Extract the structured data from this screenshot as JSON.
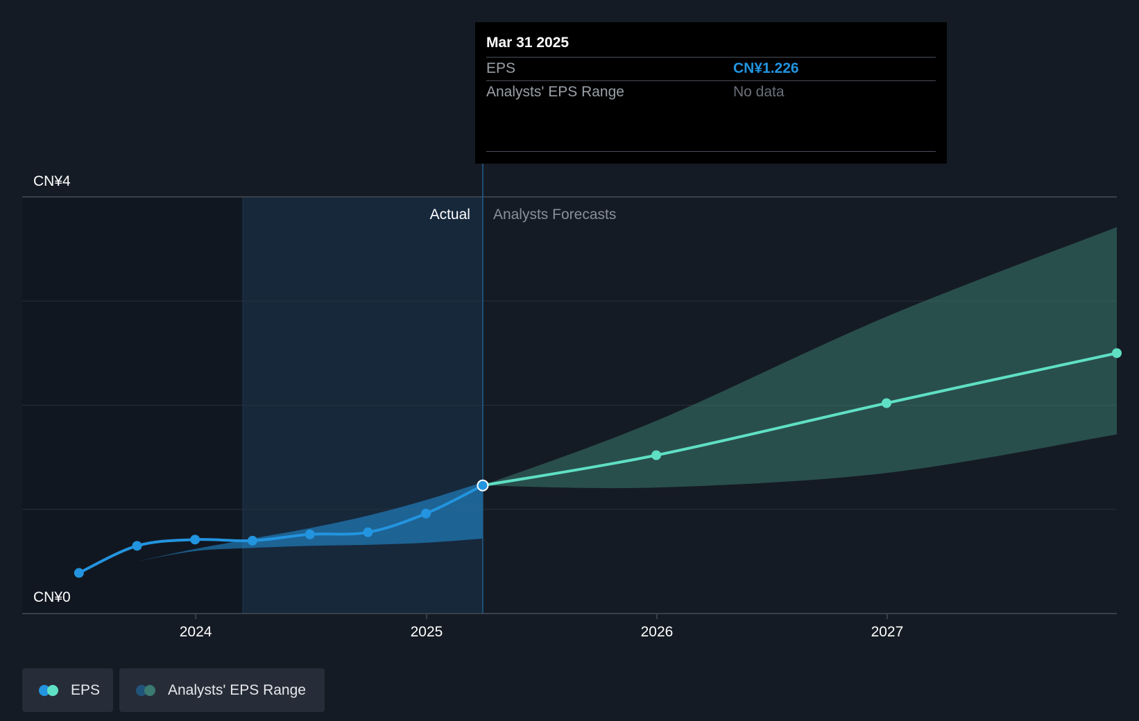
{
  "chart_data": {
    "type": "line",
    "y_ticks": {
      "top": "CN¥4",
      "bottom": "CN¥0"
    },
    "ylim": [
      0,
      4
    ],
    "x_ticks": [
      "2024",
      "2025",
      "2026",
      "2027"
    ],
    "xlim": [
      "2023-04-01",
      "2027-12-31"
    ],
    "regions": {
      "actual_label": "Actual",
      "forecast_label": "Analysts Forecasts",
      "divider_date": "2025-03-31"
    },
    "series": [
      {
        "name": "EPS",
        "color": "#2394df",
        "points": [
          {
            "x": "2023-06-30",
            "y": 0.39
          },
          {
            "x": "2023-09-30",
            "y": 0.65
          },
          {
            "x": "2023-12-31",
            "y": 0.71
          },
          {
            "x": "2024-03-31",
            "y": 0.7
          },
          {
            "x": "2024-06-30",
            "y": 0.76
          },
          {
            "x": "2024-09-30",
            "y": 0.78
          },
          {
            "x": "2024-12-31",
            "y": 0.96
          },
          {
            "x": "2025-03-31",
            "y": 1.23
          }
        ]
      },
      {
        "name": "EPS",
        "color": "#5fe0c5",
        "points": [
          {
            "x": "2025-03-31",
            "y": 1.23
          },
          {
            "x": "2025-12-31",
            "y": 1.52
          },
          {
            "x": "2026-12-31",
            "y": 2.02
          },
          {
            "x": "2027-12-31",
            "y": 2.5
          }
        ]
      }
    ],
    "actual_range": {
      "color": "#2394df",
      "points": [
        {
          "x": "2023-09-30",
          "low": 0.5,
          "high": 0.5
        },
        {
          "x": "2023-12-31",
          "low": 0.6,
          "high": 0.62
        },
        {
          "x": "2024-03-31",
          "low": 0.63,
          "high": 0.72
        },
        {
          "x": "2024-06-30",
          "low": 0.65,
          "high": 0.82
        },
        {
          "x": "2024-09-30",
          "low": 0.66,
          "high": 0.94
        },
        {
          "x": "2024-12-31",
          "low": 0.68,
          "high": 1.09
        },
        {
          "x": "2025-03-31",
          "low": 0.72,
          "high": 1.26
        }
      ]
    },
    "forecast_range": {
      "color": "#3a7a70",
      "points": [
        {
          "x": "2025-03-31",
          "low": 1.23,
          "high": 1.23
        },
        {
          "x": "2025-12-31",
          "low": 1.21,
          "high": 1.85
        },
        {
          "x": "2026-12-31",
          "low": 1.35,
          "high": 2.85
        },
        {
          "x": "2027-12-31",
          "low": 1.72,
          "high": 3.71
        }
      ]
    }
  },
  "tooltip": {
    "date": "Mar 31 2025",
    "rows": [
      {
        "label": "EPS",
        "value": "CN¥1.226",
        "value_color": "#2394df"
      },
      {
        "label": "Analysts' EPS Range",
        "value": "No data",
        "value_color": "#6b7079"
      }
    ]
  },
  "legend": [
    {
      "label": "EPS",
      "colors": [
        "#2394df",
        "#5fe0c5"
      ]
    },
    {
      "label": "Analysts' EPS Range",
      "colors": [
        "#21547a",
        "#3a7a70"
      ]
    }
  ]
}
